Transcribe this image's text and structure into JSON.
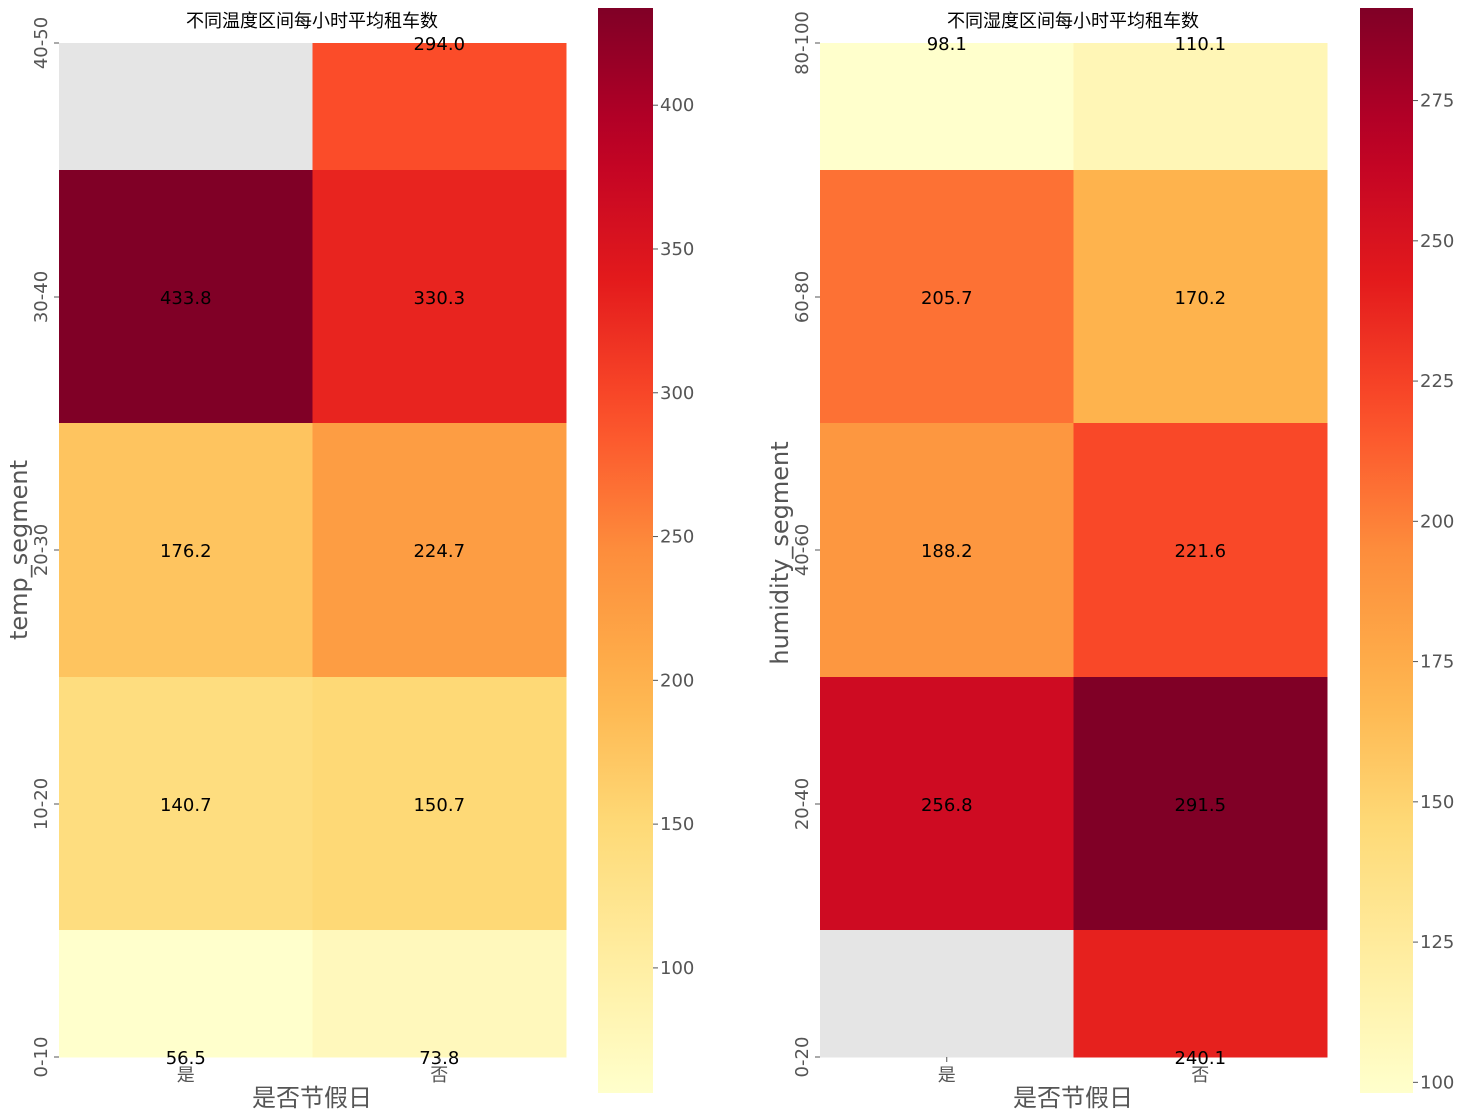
{
  "chart_data": [
    {
      "type": "heatmap",
      "title": "不同温度区间每小时平均租车数",
      "xlabel": "是否节假日",
      "ylabel": "temp_segment",
      "x_categories": [
        "是",
        "否"
      ],
      "y_categories": [
        "40-50",
        "30-40",
        "20-30",
        "10-20",
        "0-10"
      ],
      "values": [
        [
          null,
          294.0
        ],
        [
          433.8,
          330.3
        ],
        [
          176.2,
          224.7
        ],
        [
          140.7,
          150.7
        ],
        [
          56.5,
          73.8
        ]
      ],
      "annotations": [
        [
          "",
          "294.0"
        ],
        [
          "433.8",
          "330.3"
        ],
        [
          "176.2",
          "224.7"
        ],
        [
          "140.7",
          "150.7"
        ],
        [
          "56.5",
          "73.8"
        ]
      ],
      "colormap": "YlOrRd",
      "missing_color": "#e5e5e5",
      "colorbar": {
        "range": [
          56.5,
          433.8
        ],
        "ticks": [
          100,
          150,
          200,
          250,
          300,
          350,
          400
        ]
      }
    },
    {
      "type": "heatmap",
      "title": "不同湿度区间每小时平均租车数",
      "xlabel": "是否节假日",
      "ylabel": "humidity_segment",
      "x_categories": [
        "是",
        "否"
      ],
      "y_categories": [
        "80-100",
        "60-80",
        "40-60",
        "20-40",
        "0-20"
      ],
      "values": [
        [
          98.1,
          110.1
        ],
        [
          205.7,
          170.2
        ],
        [
          188.2,
          221.6
        ],
        [
          256.8,
          291.5
        ],
        [
          null,
          240.1
        ]
      ],
      "annotations": [
        [
          "98.1",
          "110.1"
        ],
        [
          "205.7",
          "170.2"
        ],
        [
          "188.2",
          "221.6"
        ],
        [
          "256.8",
          "291.5"
        ],
        [
          "",
          "240.1"
        ]
      ],
      "colormap": "YlOrRd",
      "missing_color": "#e5e5e5",
      "colorbar": {
        "range": [
          98.1,
          291.5
        ],
        "ticks": [
          100,
          125,
          150,
          175,
          200,
          225,
          250,
          275
        ]
      }
    }
  ]
}
